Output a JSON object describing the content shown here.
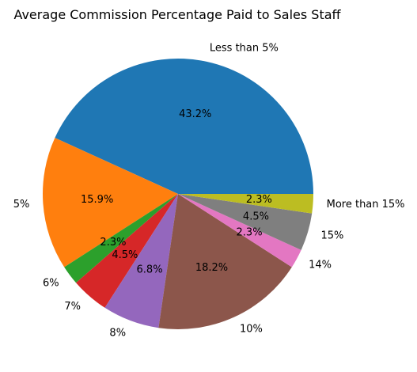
{
  "chart_data": {
    "type": "pie",
    "title": "Average Commission Percentage Paid to Sales Staff",
    "categories": [
      "Less than 5%",
      "5%",
      "6%",
      "7%",
      "8%",
      "10%",
      "14%",
      "15%",
      "More than 15%"
    ],
    "values": [
      43.2,
      15.9,
      2.3,
      4.5,
      6.8,
      18.2,
      2.3,
      4.5,
      2.3
    ],
    "value_labels": [
      "43.2%",
      "15.9%",
      "2.3%",
      "4.5%",
      "6.8%",
      "18.2%",
      "2.3%",
      "4.5%",
      "2.3%"
    ],
    "colors": [
      "#1f77b4",
      "#ff7f0e",
      "#2ca02c",
      "#d62728",
      "#9467bd",
      "#8c564b",
      "#e377c2",
      "#7f7f7f",
      "#bcbd22"
    ],
    "start_angle_deg": 0,
    "direction": "counterclockwise",
    "legend": "none"
  }
}
